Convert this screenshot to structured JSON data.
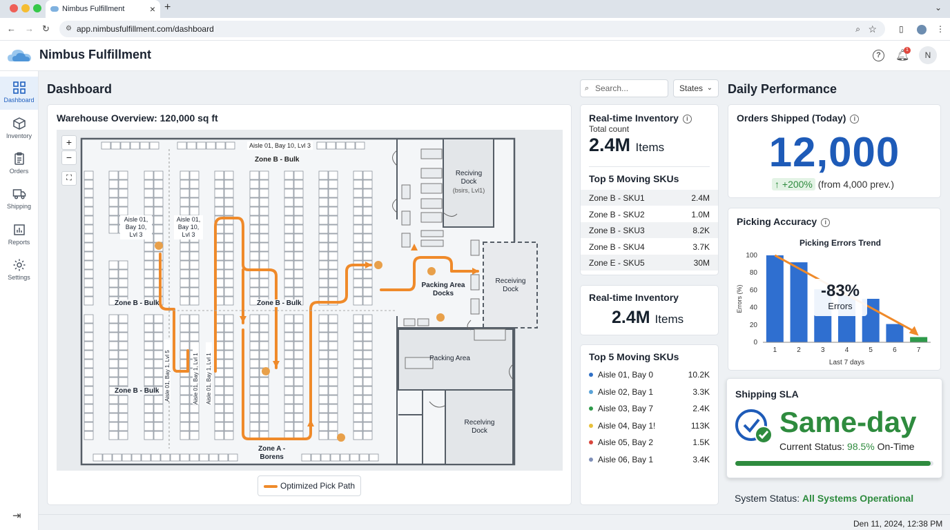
{
  "browser": {
    "tab_title": "Nimbus Fulfillment",
    "url": "app.nimbusfulfillment.com/dashboard"
  },
  "app": {
    "name": "Nimbus Fulfillment",
    "notification_count": "1",
    "avatar_initial": "N"
  },
  "sidebar": {
    "items": [
      {
        "label": "Dashboard",
        "icon": "grid-icon"
      },
      {
        "label": "Inventory",
        "icon": "box-icon"
      },
      {
        "label": "Orders",
        "icon": "clipboard-icon"
      },
      {
        "label": "Shipping",
        "icon": "truck-icon"
      },
      {
        "label": "Reports",
        "icon": "bar-chart-icon"
      },
      {
        "label": "Settings",
        "icon": "gear-icon"
      }
    ]
  },
  "page": {
    "title": "Dashboard",
    "search_placeholder": "Search...",
    "states_label": "States",
    "right_title": "Daily Performance"
  },
  "warehouse": {
    "title": "Warehouse Overview: 120,000 sq ft",
    "labels": {
      "aisle_top": "Aisle 01, Bay 10, Lvl 3",
      "zone_b_top": "Zone B - Bulk",
      "aisle_left_1": "Aisle 01,",
      "aisle_left_2": "Bay 10,",
      "aisle_left_3": "Lvl 3",
      "aisle_mid_1": "Aisle 01,",
      "aisle_mid_2": "Bay 10,",
      "aisle_mid_3": "Lvl 3",
      "zone_b_mid_left": "Zone B - Bulk",
      "zone_b_mid_center": "Zone B - Bulk",
      "zone_b_bottom_left": "Zone B - Bulk",
      "vertical_1": "Aisle 01, Bay 1, Lvl 5",
      "vertical_2": "Aisle 01, Bay 1, Lvl 1",
      "vertical_3": "Aisle 01, Bay 1, Lvl 1",
      "zone_a_1": "Zone A -",
      "zone_a_2": "Borens",
      "reciving_1": "Reciving",
      "reciving_2": "Dock",
      "reciving_3": "(bsirs, Lvl1)",
      "packing_docks_1": "Packing Area",
      "packing_docks_2": "Docks",
      "receiving_1": "Receiving",
      "receiving_2": "Dock",
      "packing_area": "Packing Area",
      "recelving_1": "Recelving",
      "recelving_2": "Dock"
    },
    "legend": "Optimized Pick Path",
    "path_color": "#ef8a2a"
  },
  "inventory_card": {
    "title": "Real-time Inventory",
    "subtitle": "Total count",
    "value": "2.4M",
    "unit": "Items",
    "skus_title": "Top 5 Moving SKUs",
    "skus": [
      {
        "name": "Zone B - SKU1",
        "value": "2.4M"
      },
      {
        "name": "Zone B - SKU2",
        "value": "1.0M"
      },
      {
        "name": "Zone B - SKU3",
        "value": "8.2K"
      },
      {
        "name": "Zone B - SKU4",
        "value": "3.7K"
      },
      {
        "name": "Zone E - SKU5",
        "value": "30M"
      }
    ]
  },
  "inventory_card2": {
    "title": "Real-time Inventory",
    "value": "2.4M",
    "unit": "Items"
  },
  "skus_card": {
    "title": "Top 5 Moving SKUs",
    "items": [
      {
        "name": "Aisle 01, Bay 0",
        "value": "10.2K",
        "color": "#2f6fc5"
      },
      {
        "name": "Aisle 02, Bay 1",
        "value": "3.3K",
        "color": "#5aa3d8"
      },
      {
        "name": "Aisle 03, Bay 7",
        "value": "2.4K",
        "color": "#2e9a4a"
      },
      {
        "name": "Aisle 04, Bay 1!",
        "value": "113K",
        "color": "#e8c03a"
      },
      {
        "name": "Aisle 05, Bay 2",
        "value": "1.5K",
        "color": "#d9463c"
      },
      {
        "name": "Aisle 06, Bay 1",
        "value": "3.4K",
        "color": "#7f8fb8"
      }
    ]
  },
  "orders_card": {
    "title": "Orders Shipped (Today)",
    "value": "12,000",
    "change": "+200%",
    "change_note": "(from 4,000 prev.)",
    "arrow": "↑"
  },
  "accuracy_card": {
    "title": "Picking Accuracy",
    "callout_value": "-83%",
    "callout_label": "Errors"
  },
  "chart_data": {
    "type": "bar",
    "title": "Picking Errors Trend",
    "xlabel": "Last 7 days",
    "ylabel": "Errors (%)",
    "categories": [
      "1",
      "2",
      "3",
      "4",
      "5",
      "6",
      "7"
    ],
    "values": [
      100,
      92,
      61,
      54,
      50,
      21,
      6
    ],
    "ylim": [
      0,
      100
    ],
    "yticks": [
      "0",
      "20",
      "40",
      "60",
      "80",
      "100"
    ],
    "bar_color": "#2f6fd0",
    "last_bar_color": "#2e9a4a",
    "trend_color": "#ef8a2a"
  },
  "sla_card": {
    "title": "Shipping SLA",
    "value": "Same-day",
    "status_prefix": "Current Status:",
    "status_value": "98.5%",
    "status_suffix": "On-Time",
    "progress": 0.985,
    "color": "#2e8b3e"
  },
  "system": {
    "prefix": "System Status:",
    "value": "All Systems Operational"
  },
  "footer": {
    "datetime": "Den 11, 2024, 12:38 PM"
  }
}
